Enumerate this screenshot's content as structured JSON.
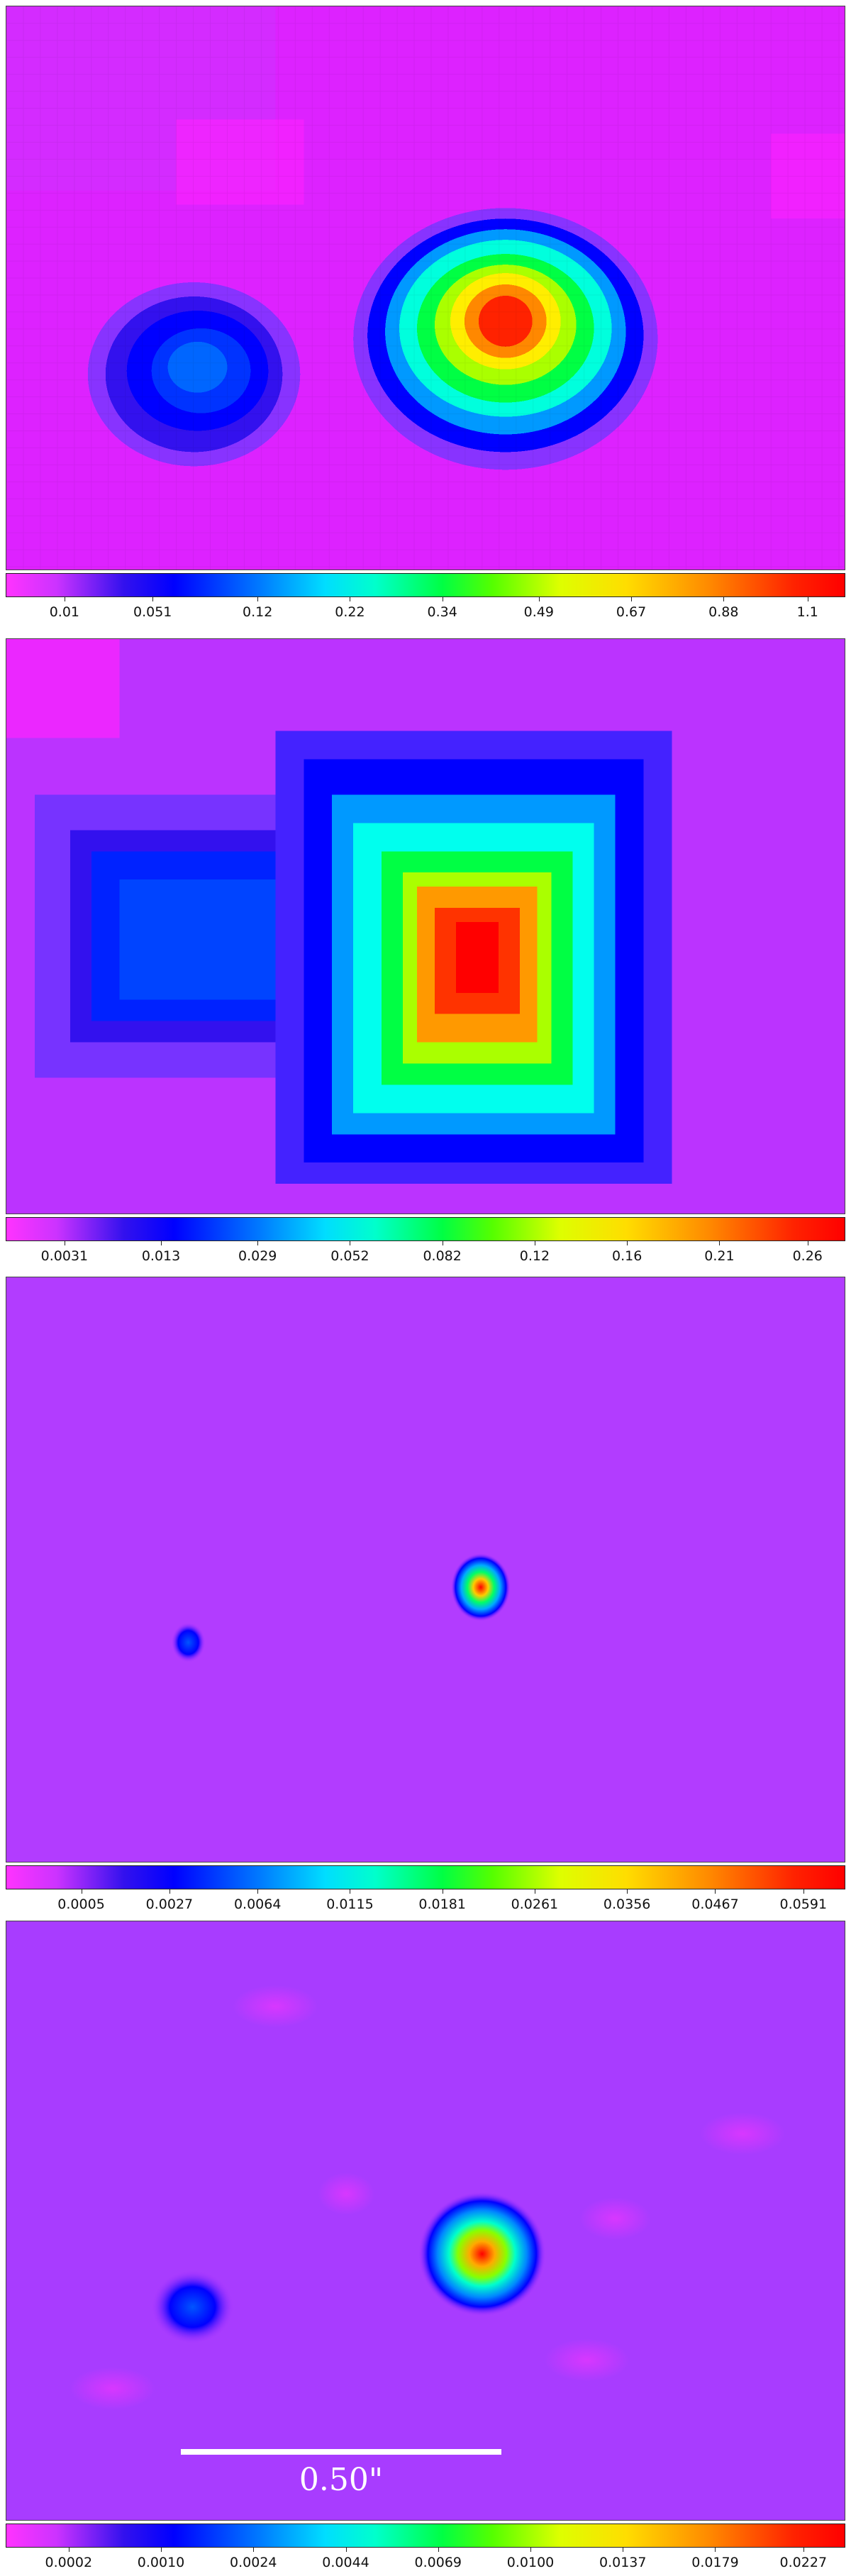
{
  "panels": [
    {
      "colorbar_ticks": [
        "0.01",
        "0.051",
        "0.12",
        "0.22",
        "0.34",
        "0.49",
        "0.67",
        "0.88",
        "1.1"
      ]
    },
    {
      "colorbar_ticks": [
        "0.0031",
        "0.013",
        "0.029",
        "0.052",
        "0.082",
        "0.12",
        "0.16",
        "0.21",
        "0.26"
      ]
    },
    {
      "colorbar_ticks": [
        "0.0005",
        "0.0027",
        "0.0064",
        "0.0115",
        "0.0181",
        "0.0261",
        "0.0356",
        "0.0467",
        "0.0591"
      ]
    },
    {
      "colorbar_ticks": [
        "0.0002",
        "0.0010",
        "0.0024",
        "0.0044",
        "0.0069",
        "0.0100",
        "0.0137",
        "0.0179",
        "0.0227"
      ]
    }
  ],
  "scalebar": {
    "label": "0.50\""
  },
  "colormap": {
    "low": "#ff33ff",
    "mid_blue": "#0000ff",
    "mid_cyan": "#00ffff",
    "mid_green": "#00ff00",
    "mid_yellow": "#ffff00",
    "high": "#ff0000"
  }
}
